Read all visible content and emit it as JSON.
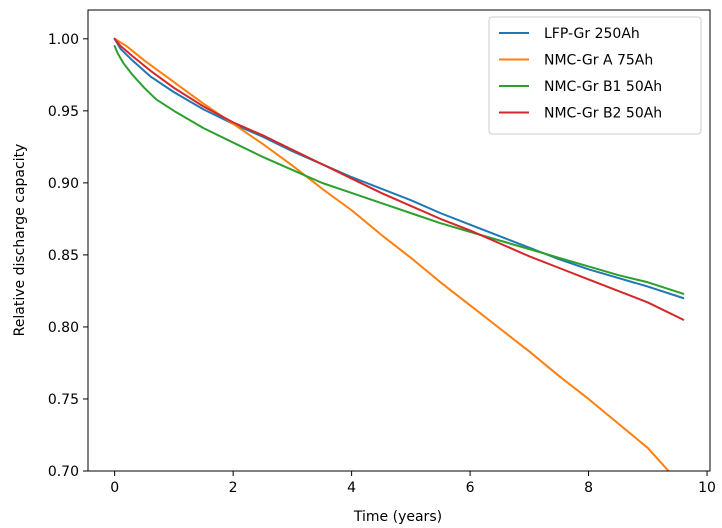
{
  "chart_data": {
    "type": "line",
    "title": "",
    "xlabel": "Time (years)",
    "ylabel": "Relative discharge capacity",
    "xlim": [
      -0.45,
      10.05
    ],
    "ylim": [
      0.7,
      1.02
    ],
    "xticks": [
      0,
      2,
      4,
      6,
      8,
      10
    ],
    "yticks": [
      0.7,
      0.75,
      0.8,
      0.85,
      0.9,
      0.95,
      1.0
    ],
    "xtick_labels": [
      "0",
      "2",
      "4",
      "6",
      "8",
      "10"
    ],
    "ytick_labels": [
      "0.70",
      "0.75",
      "0.80",
      "0.85",
      "0.90",
      "0.95",
      "1.00"
    ],
    "grid": false,
    "legend_position": "upper-right",
    "series": [
      {
        "name": "LFP-Gr 250Ah",
        "color": "#1f77b4",
        "x": [
          0,
          0.1,
          0.3,
          0.6,
          1.0,
          1.5,
          2.0,
          2.5,
          3.0,
          3.5,
          4.0,
          4.5,
          5.0,
          5.5,
          6.0,
          6.5,
          7.0,
          7.5,
          8.0,
          8.5,
          9.0,
          9.6
        ],
        "y": [
          1.0,
          0.993,
          0.985,
          0.974,
          0.963,
          0.951,
          0.941,
          0.932,
          0.922,
          0.913,
          0.904,
          0.896,
          0.888,
          0.879,
          0.871,
          0.863,
          0.855,
          0.847,
          0.84,
          0.834,
          0.828,
          0.82
        ]
      },
      {
        "name": "NMC-Gr A 75Ah",
        "color": "#ff7f0e",
        "x": [
          0,
          0.2,
          0.5,
          1.0,
          1.5,
          2.0,
          2.5,
          3.0,
          3.5,
          4.0,
          4.5,
          5.0,
          5.5,
          6.0,
          6.5,
          7.0,
          7.5,
          8.0,
          8.5,
          9.0,
          9.35
        ],
        "y": [
          1.0,
          0.995,
          0.985,
          0.97,
          0.955,
          0.941,
          0.927,
          0.912,
          0.896,
          0.881,
          0.864,
          0.848,
          0.831,
          0.815,
          0.799,
          0.783,
          0.766,
          0.75,
          0.733,
          0.716,
          0.7
        ]
      },
      {
        "name": "NMC-Gr B1 50Ah",
        "color": "#2ca02c",
        "x": [
          0,
          0.05,
          0.15,
          0.3,
          0.5,
          0.7,
          1.0,
          1.5,
          2.0,
          2.5,
          3.0,
          3.5,
          4.0,
          4.5,
          5.0,
          5.5,
          6.0,
          6.5,
          7.0,
          7.5,
          8.0,
          8.5,
          9.0,
          9.6
        ],
        "y": [
          0.995,
          0.99,
          0.983,
          0.975,
          0.966,
          0.958,
          0.95,
          0.938,
          0.928,
          0.918,
          0.909,
          0.9,
          0.893,
          0.886,
          0.879,
          0.872,
          0.866,
          0.86,
          0.854,
          0.848,
          0.842,
          0.836,
          0.831,
          0.823
        ]
      },
      {
        "name": "NMC-Gr B2 50Ah",
        "color": "#d62728",
        "x": [
          0,
          0.1,
          0.3,
          0.6,
          1.0,
          1.5,
          2.0,
          2.5,
          3.0,
          3.5,
          4.0,
          4.5,
          5.0,
          5.5,
          6.0,
          6.5,
          7.0,
          7.5,
          8.0,
          8.5,
          9.0,
          9.6
        ],
        "y": [
          1.0,
          0.995,
          0.988,
          0.978,
          0.966,
          0.953,
          0.942,
          0.933,
          0.923,
          0.913,
          0.903,
          0.893,
          0.884,
          0.875,
          0.867,
          0.858,
          0.849,
          0.841,
          0.833,
          0.825,
          0.817,
          0.805
        ]
      }
    ]
  }
}
